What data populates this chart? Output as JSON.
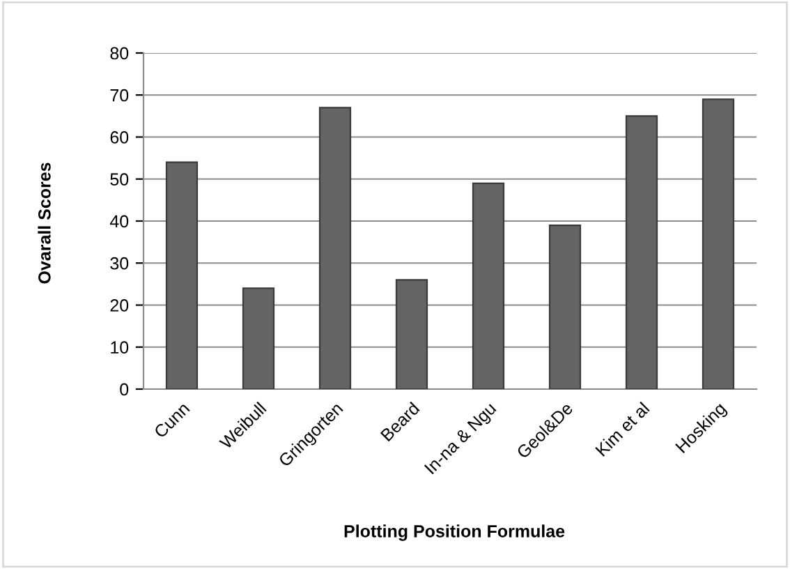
{
  "chart_data": {
    "type": "bar",
    "xlabel": "Plotting Position Formulae",
    "ylabel": "Ovarall Scores",
    "categories": [
      "Cunn",
      "Weibull",
      "Gringorten",
      "Beard",
      "In-na & Ngu",
      "Geol&De",
      "Kim et al",
      "Hosking"
    ],
    "values": [
      54,
      24,
      67,
      26,
      49,
      39,
      65,
      69
    ],
    "color": "#646464",
    "ylim": [
      0,
      80
    ],
    "yticks": [
      0,
      10,
      20,
      30,
      40,
      50,
      60,
      70,
      80
    ],
    "grid": "y"
  }
}
